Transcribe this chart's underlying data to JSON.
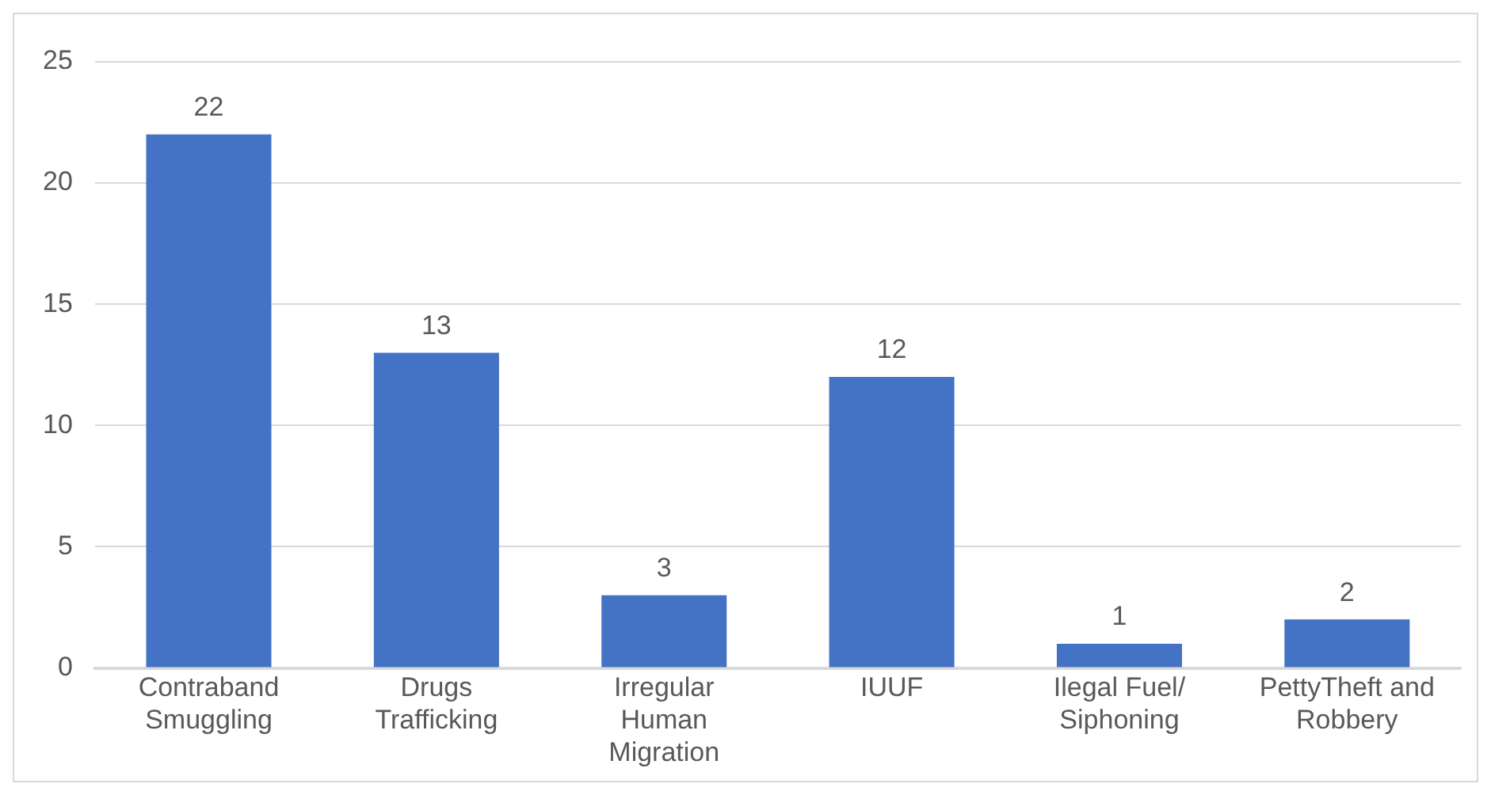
{
  "chart_data": {
    "type": "bar",
    "categories": [
      "Contraband Smuggling",
      "Drugs Trafficking",
      "Irregular Human Migration",
      "IUUF",
      "Ilegal Fuel/ Siphoning",
      "PettyTheft and Robbery"
    ],
    "values": [
      22,
      13,
      3,
      12,
      1,
      2
    ],
    "color": "#4472c4",
    "ylim": [
      0,
      25
    ],
    "yticks": [
      0,
      5,
      10,
      15,
      20,
      25
    ],
    "grid": "y",
    "data_labels": true,
    "legend": false
  }
}
